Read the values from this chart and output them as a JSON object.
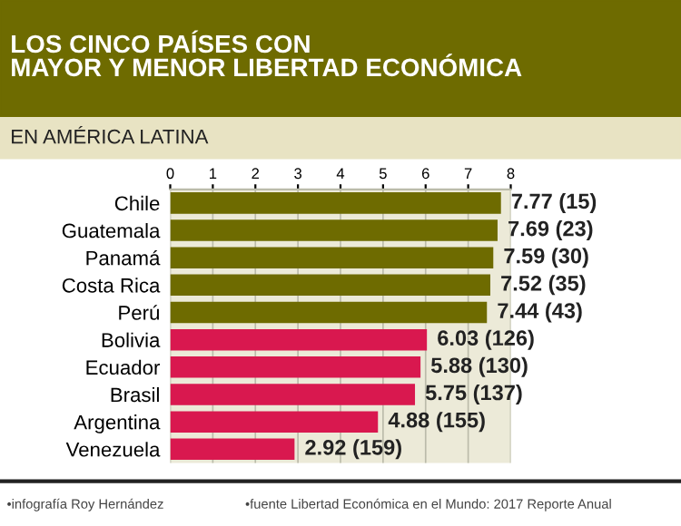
{
  "chart_data": {
    "type": "bar",
    "orientation": "horizontal",
    "title": "LOS CINCO PAÍSES CON\nMAYOR Y MENOR LIBERTAD ECONÓMICA",
    "subtitle": "EN AMÉRICA LATINA",
    "categories": [
      "Chile",
      "Guatemala",
      "Panamá",
      "Costa Rica",
      "Perú",
      "Bolivia",
      "Ecuador",
      "Brasil",
      "Argentina",
      "Venezuela"
    ],
    "values": [
      7.77,
      7.69,
      7.59,
      7.52,
      7.44,
      6.03,
      5.88,
      5.75,
      4.88,
      2.92
    ],
    "colors": [
      "#6e6b00",
      "#6e6b00",
      "#6e6b00",
      "#6e6b00",
      "#6e6b00",
      "#d9184f",
      "#d9184f",
      "#d9184f",
      "#d9184f",
      "#d9184f"
    ],
    "value_labels": [
      "7.77 (15)",
      "7.69 (23)",
      "7.59 (30)",
      "7.52 (35)",
      "7.44 (43)",
      "6.03 (126)",
      "5.88 (130)",
      "5.75 (137)",
      "4.88 (155)",
      "2.92 (159)"
    ],
    "xlim": [
      0,
      8
    ],
    "xticks": [
      0,
      1,
      2,
      3,
      4,
      5,
      6,
      7,
      8
    ],
    "grid": "x",
    "annotations": [
      "•infografía Roy Hernández",
      "•fuente Libertad Económica en el Mundo: 2017 Reporte Anual"
    ]
  }
}
